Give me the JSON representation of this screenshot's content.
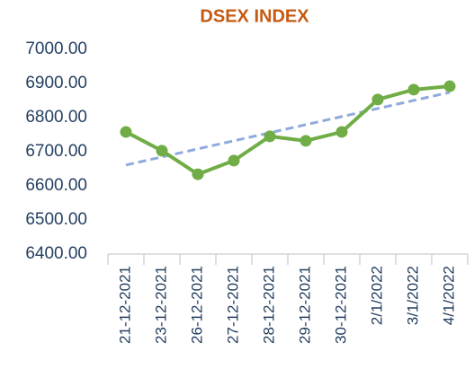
{
  "chart_data": {
    "type": "line",
    "title": "DSEX INDEX",
    "categories": [
      "21-12-2021",
      "23-12-2021",
      "26-12-2021",
      "27-12-2021",
      "28-12-2021",
      "29-12-2021",
      "30-12-2021",
      "2/1/2022",
      "3/1/2022",
      "4/1/2022"
    ],
    "values": [
      6758,
      6703,
      6634,
      6674,
      6745,
      6732,
      6758,
      6853,
      6882,
      6892
    ],
    "color": "#70ad47",
    "trendline": {
      "values": [
        6661,
        6874
      ],
      "color": "#8faadc",
      "style": "dashed"
    },
    "ylim": [
      6400,
      7000
    ],
    "yticks": [
      {
        "value": 6400,
        "label": "6400.00"
      },
      {
        "value": 6500,
        "label": "6500.00"
      },
      {
        "value": 6600,
        "label": "6600.00"
      },
      {
        "value": 6700,
        "label": "6700.00"
      },
      {
        "value": 6800,
        "label": "6800.00"
      },
      {
        "value": 6900,
        "label": "6900.00"
      },
      {
        "value": 7000,
        "label": "7000.00"
      }
    ],
    "grid": false
  }
}
